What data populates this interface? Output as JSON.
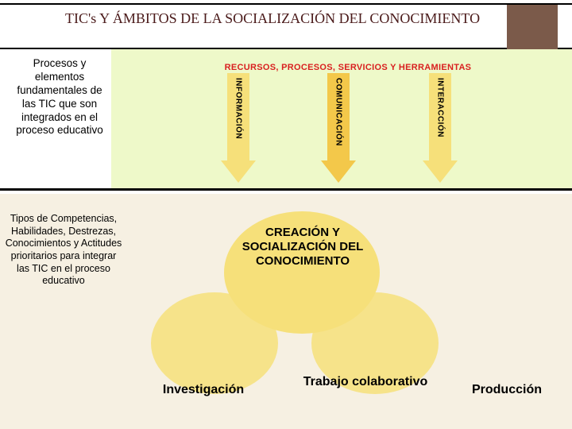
{
  "title": "TIC's Y ÁMBITOS DE LA SOCIALIZACIÓN DEL CONOCIMIENTO",
  "colors": {
    "title_text": "#4a1a1a",
    "brown_box": "#7b5a4a",
    "green_bg": "#eef9c9",
    "arrow_light": "#f6e07a",
    "arrow_dark": "#f3c84a",
    "red_text": "#d92020",
    "cream_bg": "#f6f0e2",
    "circle_fill": "#f6e07a"
  },
  "top": {
    "left_text": "Procesos y elementos fundamentales de las TIC que son integrados en el proceso educativo",
    "banner": "RECURSOS, PROCESOS, SERVICIOS Y HERRAMIENTAS",
    "arrows": {
      "a1": "INFORMACIÓN",
      "a2": "COMUNICACIÓN",
      "a3": "INTERACCIÓN"
    }
  },
  "bottom": {
    "left_text": "Tipos de Competencias, Habilidades, Destrezas, Conocimientos y Actitudes prioritarios para integrar las TIC en el proceso educativo",
    "center": "CREACIÓN Y SOCIALIZACIÓN DEL CONOCIMIENTO",
    "foot": {
      "f1": "Investigación",
      "f2": "Trabajo colaborativo",
      "f3": "Producción"
    }
  }
}
